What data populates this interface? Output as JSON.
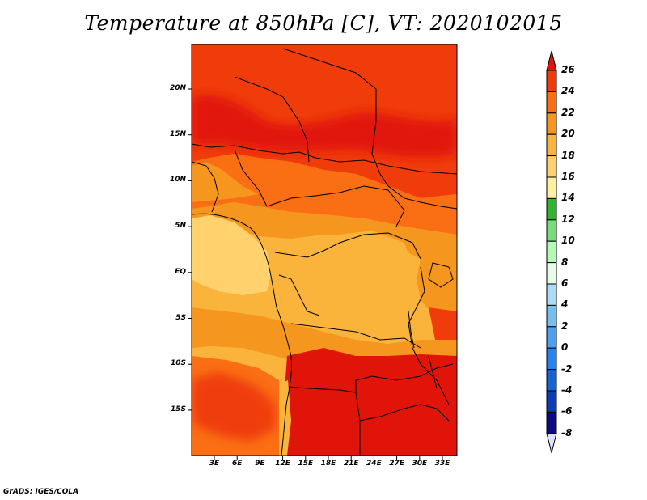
{
  "title": "Temperature at 850hPa [C], VT: 2020102015",
  "credit": "GrADS: IGES/COLA",
  "map": {
    "lat_labels": [
      "20N",
      "15N",
      "10N",
      "5N",
      "EQ",
      "5S",
      "10S",
      "15S"
    ],
    "lon_labels": [
      "3E",
      "6E",
      "9E",
      "12E",
      "15E",
      "18E",
      "21E",
      "24E",
      "27E",
      "30E",
      "33E"
    ]
  },
  "colorbar": {
    "labels": [
      "26",
      "24",
      "22",
      "20",
      "18",
      "16",
      "14",
      "12",
      "10",
      "8",
      "6",
      "4",
      "2",
      "0",
      "-2",
      "-4",
      "-6",
      "-8"
    ],
    "colors": [
      "#e1140a",
      "#f03c0a",
      "#fa6e14",
      "#f5961e",
      "#fab43c",
      "#ffd26e",
      "#fff0a0",
      "#32b432",
      "#78dc78",
      "#b4fab4",
      "#e6fae6",
      "#aadcf5",
      "#78bef0",
      "#50a0f0",
      "#2882f0",
      "#1464d2",
      "#0a3cb4",
      "#0a0a82",
      "#000064"
    ],
    "over_color": "#e1140a",
    "under_color": "#e0e0ff"
  }
}
